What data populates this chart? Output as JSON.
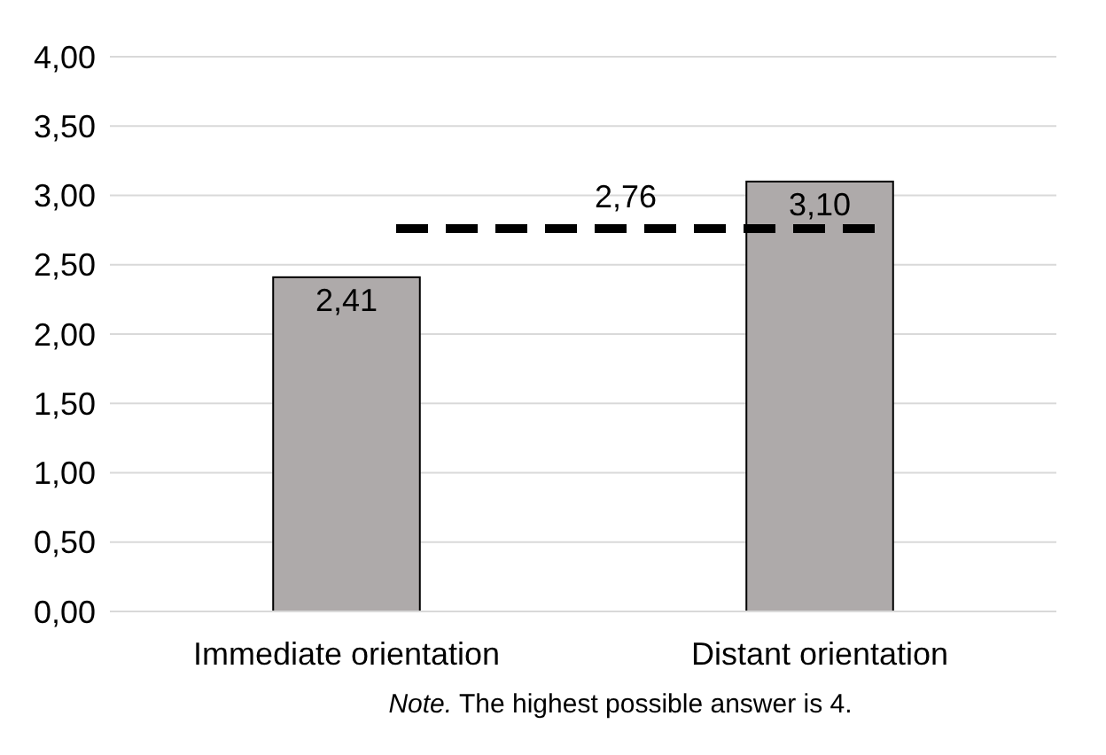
{
  "chart_data": {
    "type": "bar",
    "categories": [
      "Immediate orientation",
      "Distant orientation"
    ],
    "values": [
      2.41,
      3.1
    ],
    "value_labels": [
      "2,41",
      "3,10"
    ],
    "color": "#aeaaaa",
    "ylim": [
      0,
      4
    ],
    "yticks": [
      {
        "value": 0,
        "label": "0,00"
      },
      {
        "value": 0.5,
        "label": "0,50"
      },
      {
        "value": 1,
        "label": "1,00"
      },
      {
        "value": 1.5,
        "label": "1,50"
      },
      {
        "value": 2,
        "label": "2,00"
      },
      {
        "value": 2.5,
        "label": "2,50"
      },
      {
        "value": 3,
        "label": "3,00"
      },
      {
        "value": 3.5,
        "label": "3,50"
      },
      {
        "value": 4,
        "label": "4,00"
      }
    ],
    "grid": "y",
    "ref_lines": [
      {
        "axis": "y",
        "value": 2.76,
        "label": "2,76",
        "color": "#000000",
        "line_style": "dashed"
      }
    ],
    "annotations": [
      "Note. The highest possible answer is 4."
    ]
  }
}
